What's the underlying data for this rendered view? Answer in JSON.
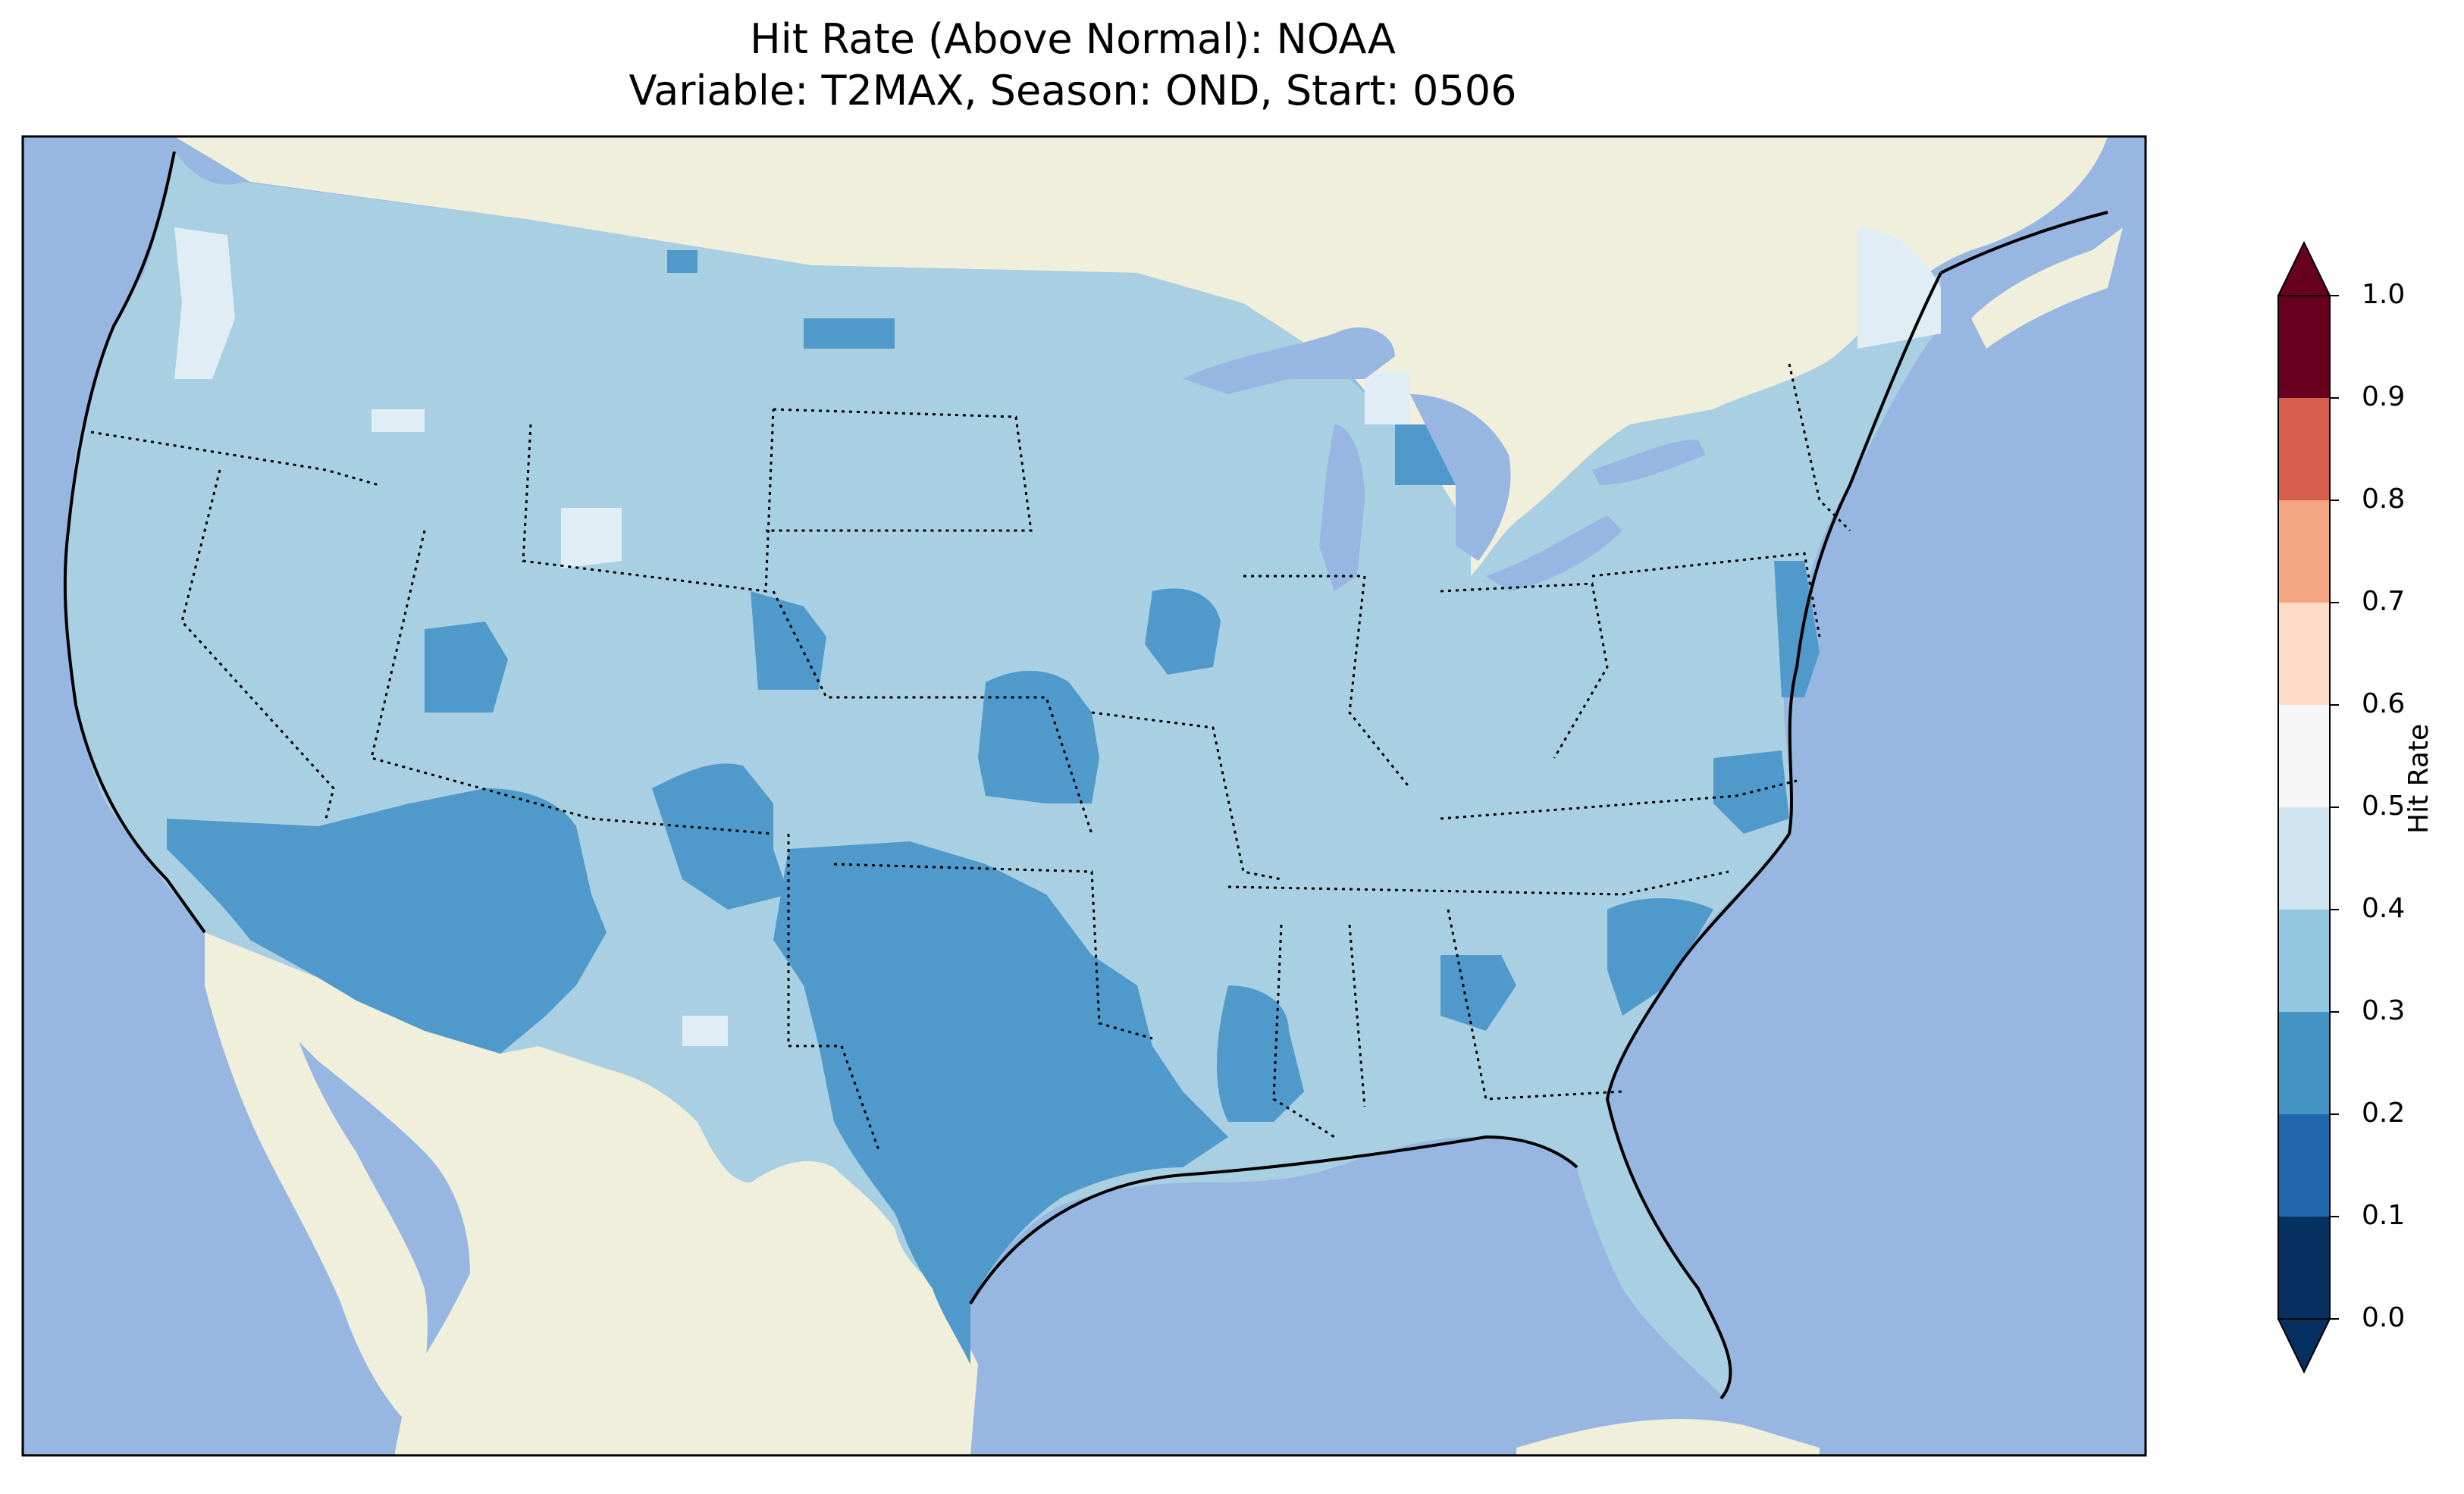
{
  "title": "Hit Rate (Above Normal): NOAA",
  "subtitle": "Variable: T2MAX, Season: OND, Start: 0506",
  "colorbar": {
    "label": "Hit Rate",
    "ticks": [
      "0.0",
      "0.1",
      "0.2",
      "0.3",
      "0.4",
      "0.5",
      "0.6",
      "0.7",
      "0.8",
      "0.9",
      "1.0"
    ],
    "colors": [
      "#053061",
      "#2166ac",
      "#4393c3",
      "#92c5de",
      "#d1e5f0",
      "#f7f7f7",
      "#fddbc7",
      "#f4a582",
      "#d6604d",
      "#b2182b",
      "#67001f"
    ],
    "extend": "both"
  },
  "map": {
    "ocean_color": "#97b6e1",
    "land_color": "#efefdb",
    "region": "Contiguous United States",
    "dominant_class": "0.3-0.4",
    "classes_present": [
      "0.2-0.3",
      "0.3-0.4",
      "0.4-0.5"
    ]
  }
}
